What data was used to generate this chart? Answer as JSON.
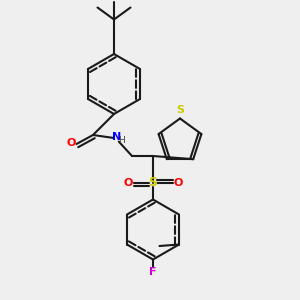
{
  "bg_color": "#efefef",
  "line_color": "#1a1a1a",
  "line_width": 1.5,
  "atom_colors": {
    "O": "#ff0000",
    "N": "#0000ff",
    "S_thiophene": "#cccc00",
    "S_sulfonyl": "#cccc00",
    "F": "#cc00cc",
    "H": "#404040"
  }
}
